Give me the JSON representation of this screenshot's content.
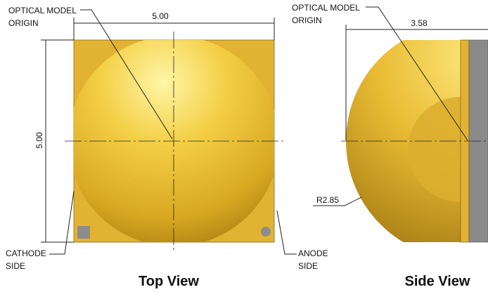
{
  "top_view": {
    "title": "Top View",
    "origin_label": [
      "OPTICAL MODEL",
      "ORIGIN"
    ],
    "width_dimension": "5.00",
    "height_dimension": "5.00",
    "cathode_label": [
      "CATHODE",
      "SIDE"
    ],
    "anode_label": [
      "ANODE",
      "SIDE"
    ]
  },
  "side_view": {
    "title": "Side View",
    "origin_label": [
      "OPTICAL MODEL",
      "ORIGIN"
    ],
    "height_dimension": "3.58",
    "radius_label": "R2.85"
  }
}
